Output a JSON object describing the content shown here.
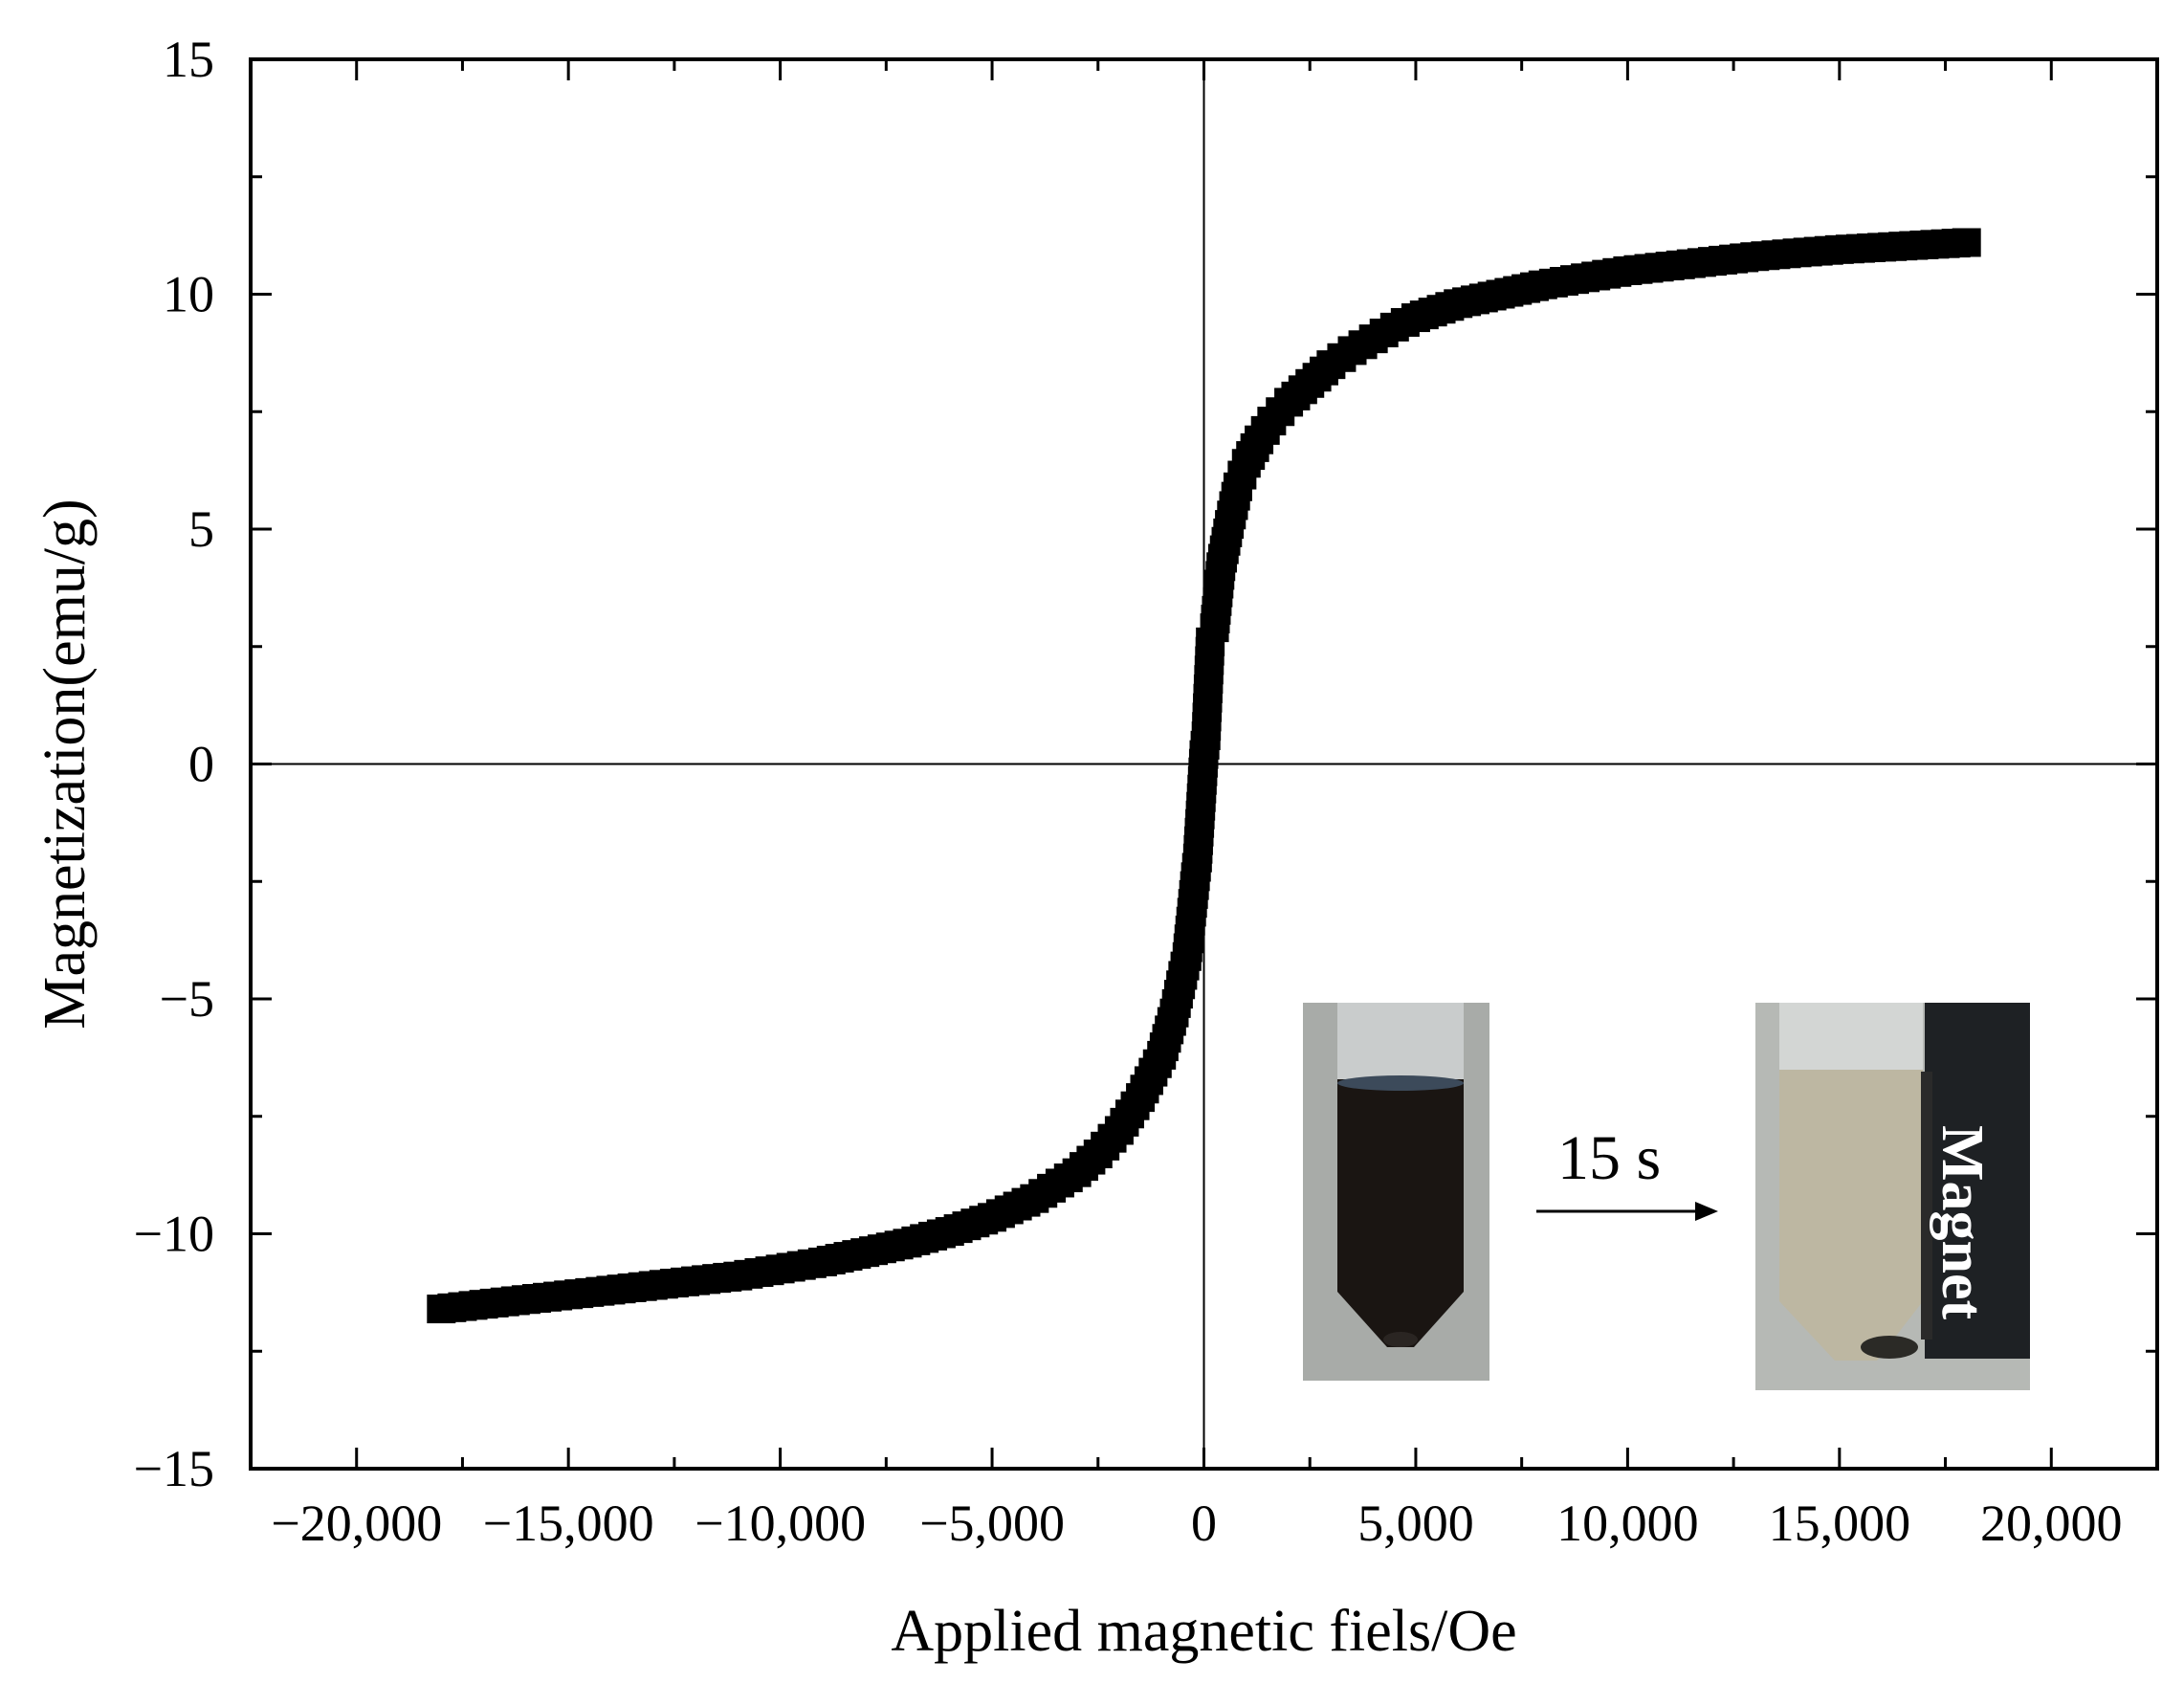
{
  "chart_data": {
    "type": "scatter",
    "xlabel": "Applied magnetic fiels/Oe",
    "ylabel": "Magnetization(emu/g)",
    "xlim": [
      -22500,
      22500
    ],
    "ylim": [
      -15,
      15
    ],
    "xticks": [
      -20000,
      -15000,
      -10000,
      -5000,
      0,
      5000,
      10000,
      15000,
      20000
    ],
    "xtick_labels": [
      "−20,000",
      "−15,000",
      "−10,000",
      "−5,000",
      "0",
      "5,000",
      "10,000",
      "15,000",
      "20,000"
    ],
    "yticks": [
      -15,
      -10,
      -5,
      0,
      5,
      10,
      15
    ],
    "ytick_labels": [
      "−15",
      "−10",
      "−5",
      "0",
      "5",
      "10",
      "15"
    ],
    "grid": false,
    "zero_lines": true,
    "marker": "square",
    "marker_color": "#000000",
    "series": [
      {
        "points": [
          [
            -18000,
            -11.6
          ],
          [
            -17000,
            -11.5
          ],
          [
            -16000,
            -11.4
          ],
          [
            -15000,
            -11.3
          ],
          [
            -14000,
            -11.2
          ],
          [
            -13000,
            -11.1
          ],
          [
            -12000,
            -11.0
          ],
          [
            -11000,
            -10.9
          ],
          [
            -10000,
            -10.75
          ],
          [
            -9000,
            -10.6
          ],
          [
            -8000,
            -10.4
          ],
          [
            -7000,
            -10.2
          ],
          [
            -6000,
            -9.95
          ],
          [
            -5000,
            -9.65
          ],
          [
            -4000,
            -9.25
          ],
          [
            -3000,
            -8.7
          ],
          [
            -2500,
            -8.3
          ],
          [
            -2000,
            -7.8
          ],
          [
            -1500,
            -7.1
          ],
          [
            -1000,
            -6.2
          ],
          [
            -700,
            -5.3
          ],
          [
            -400,
            -4.1
          ],
          [
            -200,
            -2.4
          ],
          [
            -150,
            -2.0
          ],
          [
            0,
            0.2
          ],
          [
            50,
            0.6
          ],
          [
            150,
            2.6
          ],
          [
            250,
            2.9
          ],
          [
            400,
            4.2
          ],
          [
            600,
            5.1
          ],
          [
            800,
            5.9
          ],
          [
            1000,
            6.4
          ],
          [
            1300,
            6.9
          ],
          [
            1600,
            7.3
          ],
          [
            2000,
            7.7
          ],
          [
            2500,
            8.1
          ],
          [
            3000,
            8.5
          ],
          [
            3500,
            8.8
          ],
          [
            4000,
            9.05
          ],
          [
            4500,
            9.3
          ],
          [
            5000,
            9.5
          ],
          [
            6000,
            9.8
          ],
          [
            7000,
            10.0
          ],
          [
            8000,
            10.2
          ],
          [
            9000,
            10.35
          ],
          [
            10000,
            10.5
          ],
          [
            11000,
            10.6
          ],
          [
            12000,
            10.7
          ],
          [
            13000,
            10.8
          ],
          [
            14000,
            10.88
          ],
          [
            15000,
            10.95
          ],
          [
            16000,
            11.0
          ],
          [
            17000,
            11.05
          ],
          [
            18000,
            11.1
          ]
        ]
      }
    ]
  },
  "inset": {
    "label": "15 s",
    "magnet_label": "Magnet"
  }
}
